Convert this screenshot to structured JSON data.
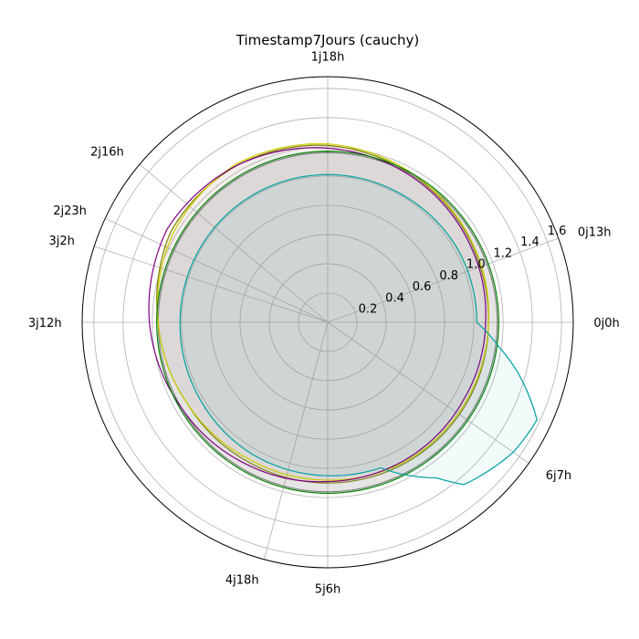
{
  "chart_data": {
    "type": "polar-line",
    "title": "Timestamp7Jours (cauchy)",
    "rlim": [
      0,
      1.68
    ],
    "r_ticks": [
      "0.2",
      "0.4",
      "0.6",
      "0.8",
      "1.0",
      "1.2",
      "1.4",
      "1.6"
    ],
    "r_tick_values": [
      0.2,
      0.4,
      0.6,
      0.8,
      1.0,
      1.2,
      1.4,
      1.6
    ],
    "theta_labels": [
      {
        "label": "0j0h",
        "deg": 0
      },
      {
        "label": "0j13h",
        "deg": 20
      },
      {
        "label": "1j18h",
        "deg": 90
      },
      {
        "label": "2j16h",
        "deg": 140
      },
      {
        "label": "2j23h",
        "deg": 155
      },
      {
        "label": "3j2h",
        "deg": 162
      },
      {
        "label": "3j12h",
        "deg": 180
      },
      {
        "label": "4j18h",
        "deg": 255
      },
      {
        "label": "5j6h",
        "deg": 270
      },
      {
        "label": "6j7h",
        "deg": 325
      }
    ],
    "grid": true,
    "series": [
      {
        "color": "#808000",
        "fill": "#bda999",
        "fill_opacity": 0.18,
        "points": [
          [
            0,
            1.1
          ],
          [
            20,
            1.11
          ],
          [
            60,
            1.16
          ],
          [
            90,
            1.21
          ],
          [
            120,
            1.24
          ],
          [
            150,
            1.24
          ],
          [
            180,
            1.16
          ],
          [
            210,
            1.11
          ],
          [
            240,
            1.1
          ],
          [
            270,
            1.1
          ],
          [
            300,
            1.1
          ],
          [
            330,
            1.1
          ],
          [
            360,
            1.1
          ]
        ]
      },
      {
        "color": "#808080",
        "fill": "#8a8a8a",
        "fill_opacity": 0.22,
        "points": [
          [
            0,
            1.16
          ],
          [
            90,
            1.16
          ],
          [
            180,
            1.16
          ],
          [
            270,
            1.16
          ],
          [
            360,
            1.16
          ]
        ]
      },
      {
        "color": "#cccc00",
        "fill": null,
        "points": [
          [
            0,
            1.1
          ],
          [
            30,
            1.13
          ],
          [
            60,
            1.17
          ],
          [
            90,
            1.22
          ],
          [
            120,
            1.25
          ],
          [
            150,
            1.22
          ],
          [
            180,
            1.16
          ],
          [
            210,
            1.11
          ],
          [
            240,
            1.08
          ],
          [
            270,
            1.08
          ],
          [
            300,
            1.09
          ],
          [
            330,
            1.09
          ],
          [
            360,
            1.1
          ]
        ]
      },
      {
        "color": "#800080",
        "fill": null,
        "points": [
          [
            0,
            1.08
          ],
          [
            30,
            1.11
          ],
          [
            60,
            1.15
          ],
          [
            90,
            1.19
          ],
          [
            120,
            1.24
          ],
          [
            150,
            1.27
          ],
          [
            180,
            1.22
          ],
          [
            210,
            1.16
          ],
          [
            240,
            1.12
          ],
          [
            270,
            1.09
          ],
          [
            300,
            1.08
          ],
          [
            330,
            1.07
          ],
          [
            360,
            1.08
          ]
        ]
      },
      {
        "color": "#008000",
        "fill": null,
        "points": [
          [
            0,
            1.17
          ],
          [
            90,
            1.17
          ],
          [
            180,
            1.17
          ],
          [
            270,
            1.17
          ],
          [
            360,
            1.17
          ]
        ]
      },
      {
        "color": "#00a0a0",
        "fill": "#00a0a0",
        "fill_opacity": 0.05,
        "points": [
          [
            0,
            1.02
          ],
          [
            30,
            1.02
          ],
          [
            60,
            1.01
          ],
          [
            90,
            1.01
          ],
          [
            120,
            1.01
          ],
          [
            150,
            1.01
          ],
          [
            180,
            1.01
          ],
          [
            210,
            1.02
          ],
          [
            240,
            1.04
          ],
          [
            270,
            1.05
          ],
          [
            290,
            1.06
          ],
          [
            305,
            1.3
          ],
          [
            310,
            1.45
          ],
          [
            325,
            1.55
          ],
          [
            335,
            1.58
          ],
          [
            345,
            1.35
          ],
          [
            352,
            1.18
          ],
          [
            360,
            1.02
          ]
        ]
      }
    ]
  }
}
